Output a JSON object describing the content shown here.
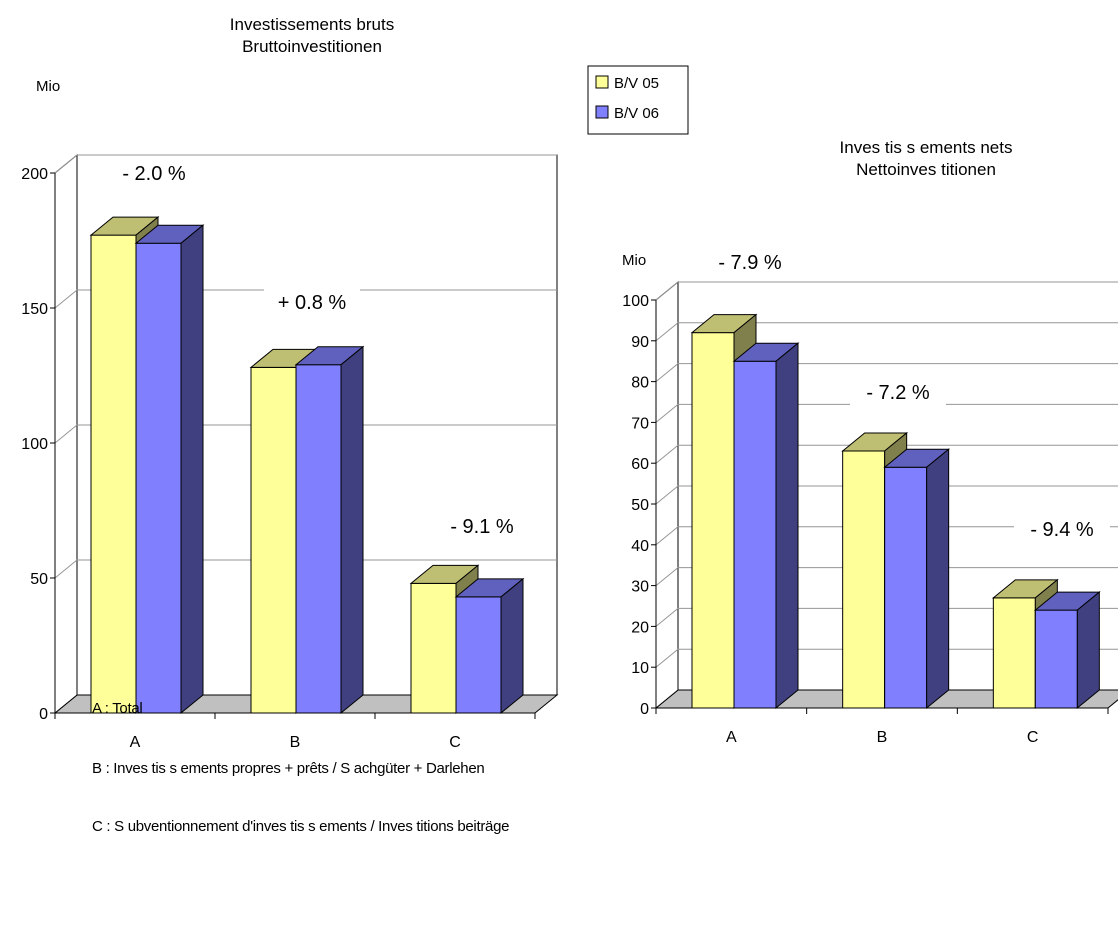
{
  "legend": [
    {
      "label": "B/V 05",
      "color": "#ffff99"
    },
    {
      "label": "B/V 06",
      "color": "#8080ff"
    }
  ],
  "chart_data": [
    {
      "type": "bar",
      "title": "Investissements bruts",
      "subtitle": "Bruttoinvestitionen",
      "ylabel": "Mio",
      "categories": [
        "A",
        "B",
        "C"
      ],
      "ylim": [
        0,
        200
      ],
      "yticks": [
        0,
        50,
        100,
        150,
        200
      ],
      "series": [
        {
          "name": "B/V 05",
          "values": [
            177,
            128,
            48
          ]
        },
        {
          "name": "B/V 06",
          "values": [
            174,
            129,
            43
          ]
        }
      ],
      "annotations": [
        "- 2.0 %",
        "+ 0.8 %",
        "- 9.1 %"
      ],
      "grid": true,
      "legend_position": "top-right"
    },
    {
      "type": "bar",
      "title": "Inves tis s ements nets",
      "subtitle": "Nettoinves titionen",
      "ylabel": "Mio",
      "categories": [
        "A",
        "B",
        "C"
      ],
      "ylim": [
        0,
        100
      ],
      "yticks": [
        0,
        10,
        20,
        30,
        40,
        50,
        60,
        70,
        80,
        90,
        100
      ],
      "series": [
        {
          "name": "B/V 05",
          "values": [
            92,
            63,
            27
          ]
        },
        {
          "name": "B/V 06",
          "values": [
            85,
            59,
            24
          ]
        }
      ],
      "annotations": [
        "- 7.9 %",
        "- 7.2 %",
        "- 9.4 %"
      ],
      "grid": true
    }
  ],
  "notes": [
    "A : Total",
    "B : Inves tis s ements propres + prêts / S achgüter + Darlehen",
    "C : S ubventionnement d'inves tis s ements / Inves titions beiträge"
  ]
}
